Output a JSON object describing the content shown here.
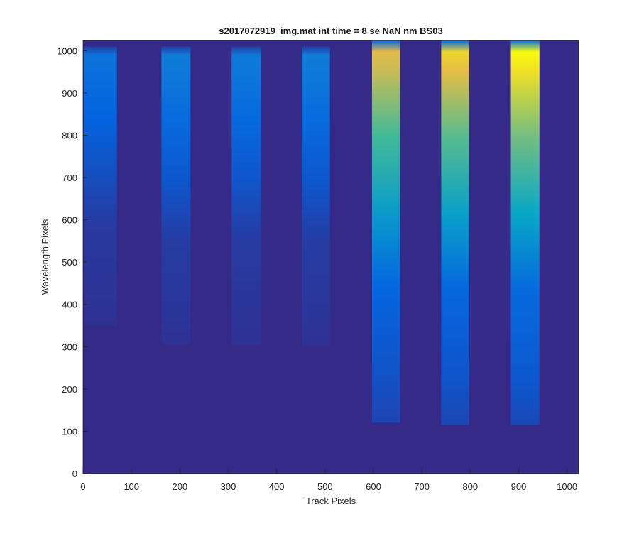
{
  "chart_data": {
    "type": "heatmap",
    "title": "s2017072919_img.mat int time = 8 se  NaN nm BS03",
    "xlabel": "Track Pixels",
    "ylabel": "Wavelength Pixels",
    "xlim": [
      0,
      1024
    ],
    "ylim": [
      0,
      1024
    ],
    "xticks": [
      0,
      100,
      200,
      300,
      400,
      500,
      600,
      700,
      800,
      900,
      1000
    ],
    "yticks": [
      0,
      100,
      200,
      300,
      400,
      500,
      600,
      700,
      800,
      900,
      1000
    ],
    "colormap": "parula",
    "background_color": "#352a87",
    "grid": false,
    "legend": "none",
    "tracks": [
      {
        "x_start": 2,
        "x_end": 70,
        "y_bottom": 350,
        "y_top": 1010,
        "peak": 0.22
      },
      {
        "x_start": 162,
        "x_end": 222,
        "y_bottom": 305,
        "y_top": 1010,
        "peak": 0.26
      },
      {
        "x_start": 307,
        "x_end": 368,
        "y_bottom": 305,
        "y_top": 1010,
        "peak": 0.25
      },
      {
        "x_start": 452,
        "x_end": 510,
        "y_bottom": 300,
        "y_top": 1010,
        "peak": 0.26
      },
      {
        "x_start": 597,
        "x_end": 655,
        "y_bottom": 120,
        "y_top": 1024,
        "peak": 0.88
      },
      {
        "x_start": 740,
        "x_end": 798,
        "y_bottom": 115,
        "y_top": 1024,
        "peak": 0.93
      },
      {
        "x_start": 884,
        "x_end": 943,
        "y_bottom": 115,
        "y_top": 1024,
        "peak": 1.0
      }
    ]
  }
}
